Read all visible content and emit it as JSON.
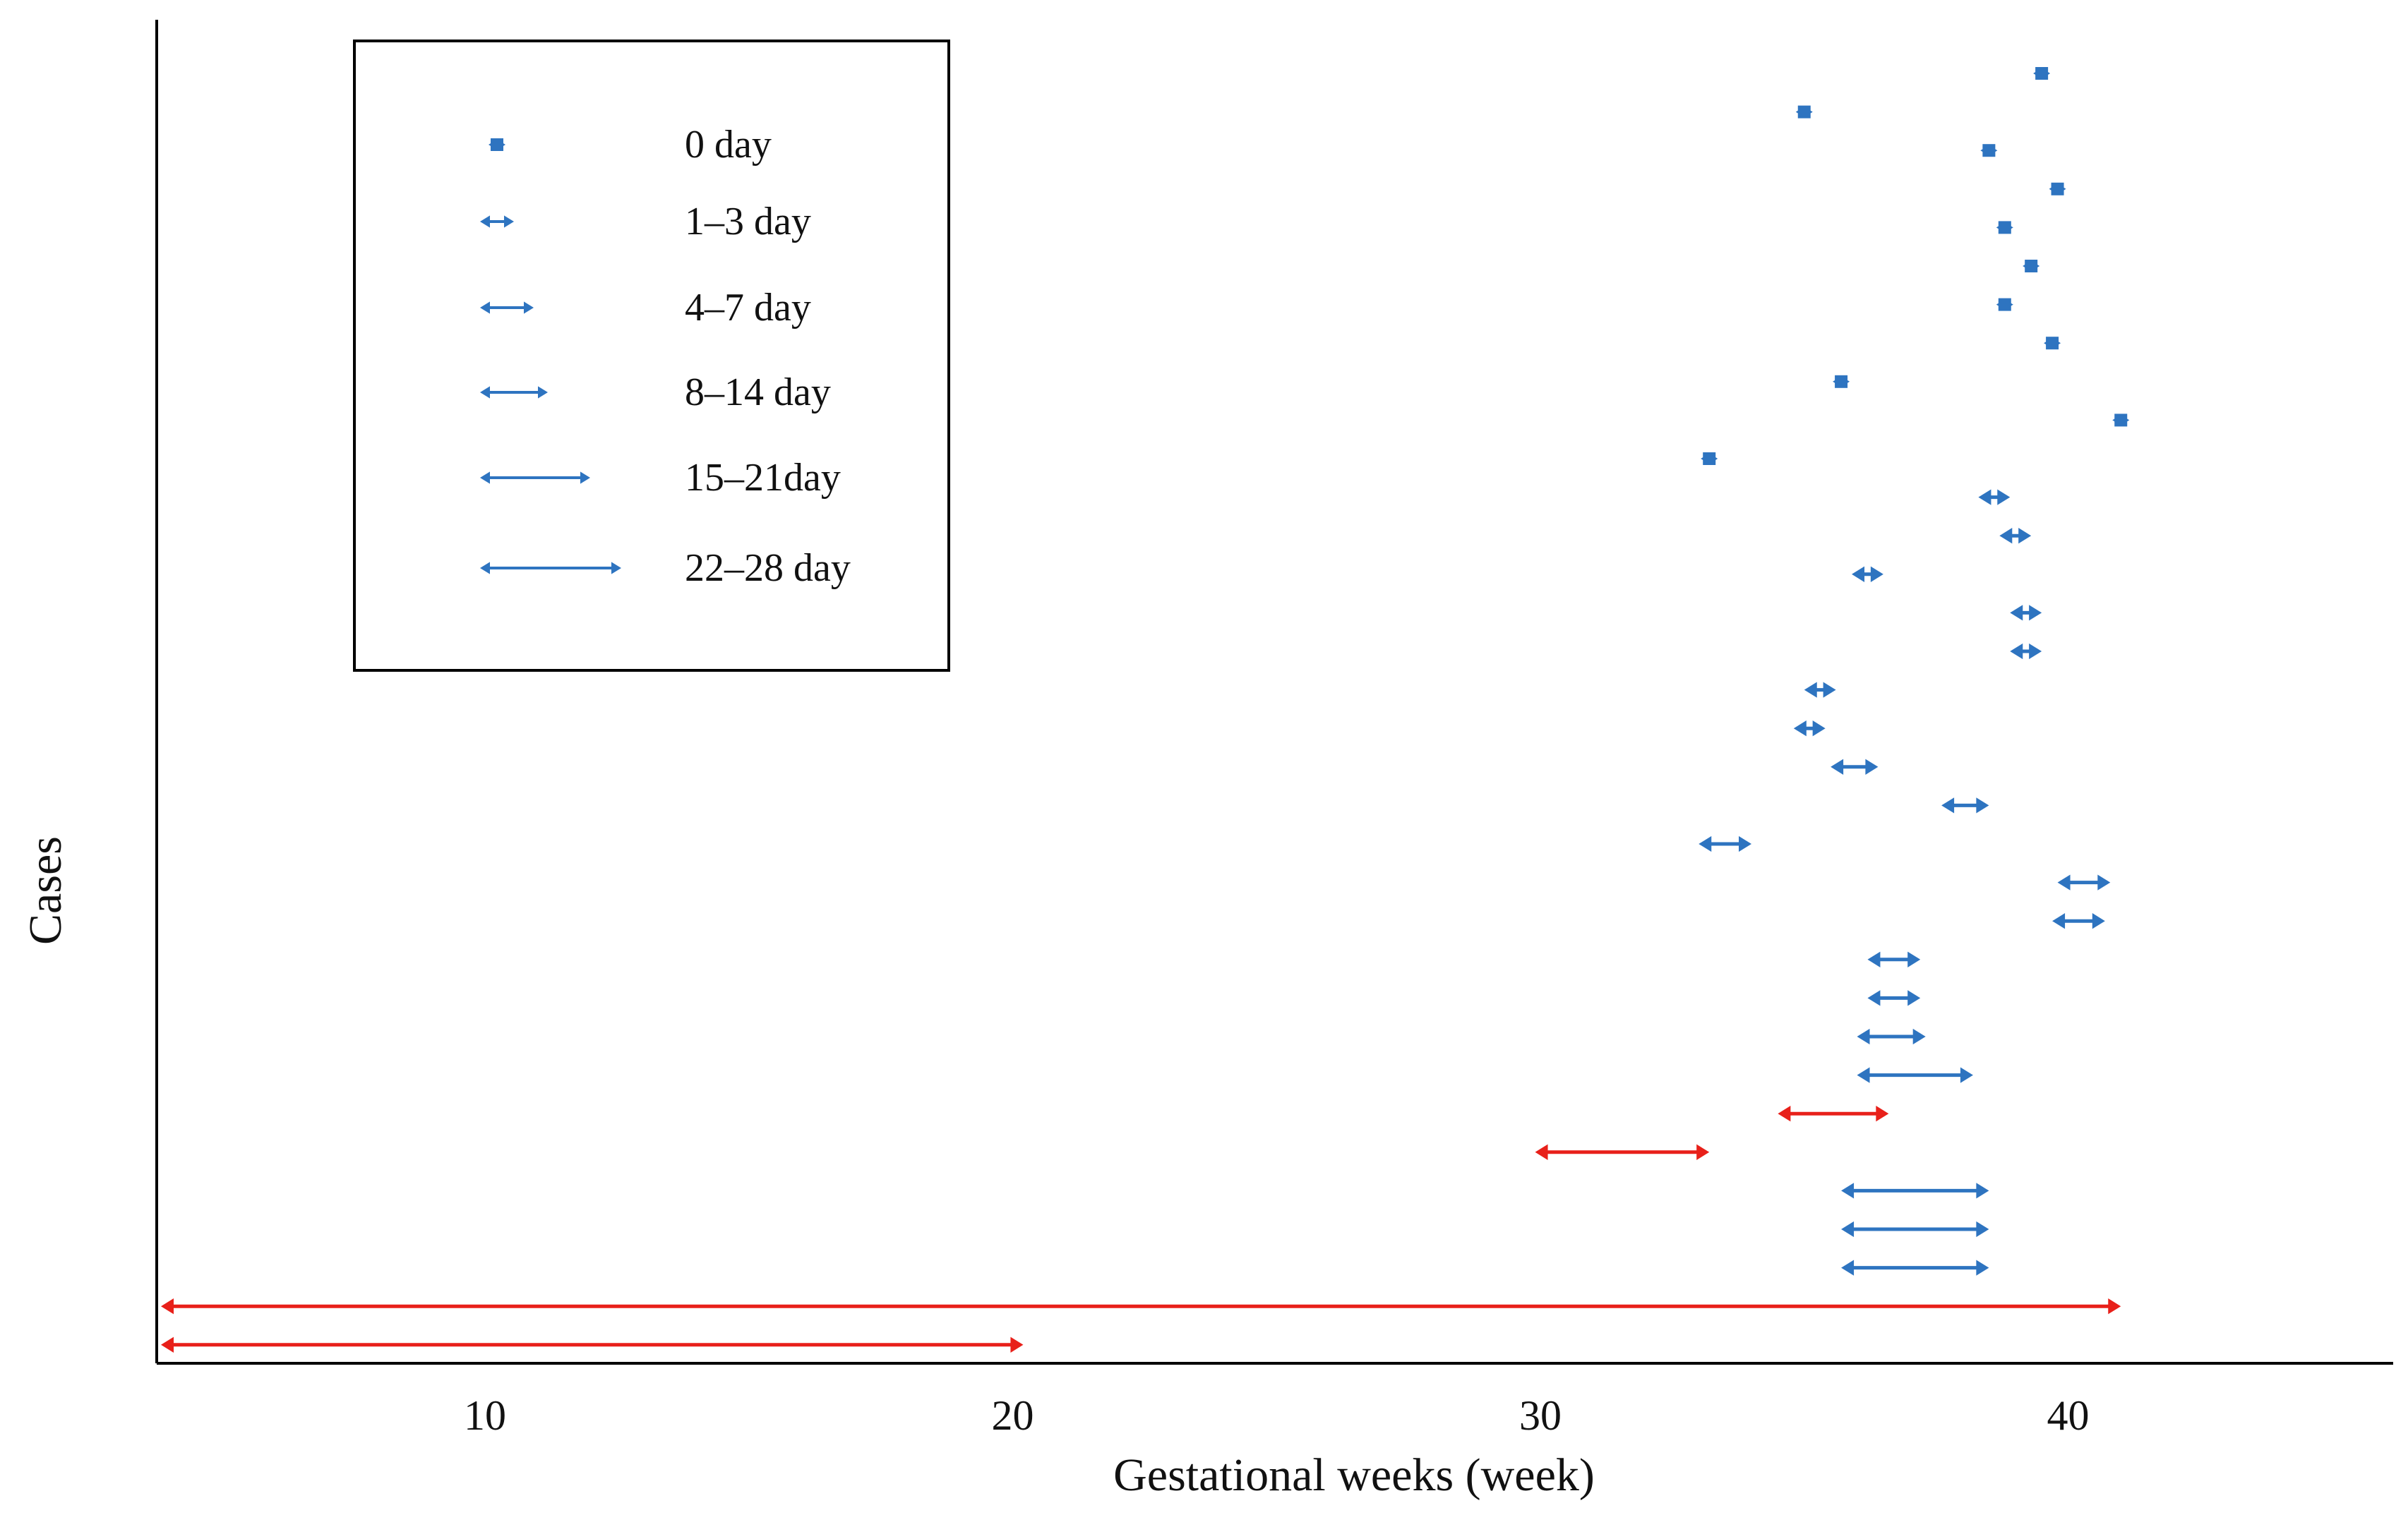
{
  "chart_data": {
    "type": "interval",
    "title": "",
    "xlabel": "Gestational weeks (week)",
    "ylabel": "Cases",
    "xlim": [
      3.5,
      45.5
    ],
    "xticks": [
      10,
      20,
      30,
      40
    ],
    "colors": {
      "blue": "#2e74c0",
      "red": "#e8201a",
      "axis": "#000000"
    },
    "legend": {
      "placement": "top-left",
      "items": [
        {
          "label": "0 day",
          "duration_days": 0
        },
        {
          "label": "1–3 day",
          "duration_days": 3
        },
        {
          "label": "4–7 day",
          "duration_days": 7
        },
        {
          "label": "8–14 day",
          "duration_days": 10
        },
        {
          "label": "15–21day",
          "duration_days": 16
        },
        {
          "label": "22–28 day",
          "duration_days": 22
        }
      ]
    },
    "cases": [
      {
        "row": 1,
        "start": 39.4,
        "end": 39.6,
        "color": "blue"
      },
      {
        "row": 2,
        "start": 34.9,
        "end": 35.1,
        "color": "blue"
      },
      {
        "row": 3,
        "start": 38.4,
        "end": 38.6,
        "color": "blue"
      },
      {
        "row": 4,
        "start": 39.7,
        "end": 39.9,
        "color": "blue"
      },
      {
        "row": 5,
        "start": 38.7,
        "end": 38.9,
        "color": "blue"
      },
      {
        "row": 6,
        "start": 39.2,
        "end": 39.4,
        "color": "blue"
      },
      {
        "row": 7,
        "start": 38.7,
        "end": 38.9,
        "color": "blue"
      },
      {
        "row": 8,
        "start": 39.6,
        "end": 39.8,
        "color": "blue"
      },
      {
        "row": 9,
        "start": 35.6,
        "end": 35.8,
        "color": "blue"
      },
      {
        "row": 10,
        "start": 40.9,
        "end": 41.1,
        "color": "blue"
      },
      {
        "row": 11,
        "start": 33.1,
        "end": 33.3,
        "color": "blue"
      },
      {
        "row": 12,
        "start": 38.3,
        "end": 38.9,
        "color": "blue"
      },
      {
        "row": 13,
        "start": 38.7,
        "end": 39.3,
        "color": "blue"
      },
      {
        "row": 14,
        "start": 35.9,
        "end": 36.5,
        "color": "blue"
      },
      {
        "row": 15,
        "start": 38.9,
        "end": 39.5,
        "color": "blue"
      },
      {
        "row": 16,
        "start": 38.9,
        "end": 39.5,
        "color": "blue"
      },
      {
        "row": 17,
        "start": 35.0,
        "end": 35.6,
        "color": "blue"
      },
      {
        "row": 18,
        "start": 34.8,
        "end": 35.4,
        "color": "blue"
      },
      {
        "row": 19,
        "start": 35.5,
        "end": 36.4,
        "color": "blue"
      },
      {
        "row": 20,
        "start": 37.6,
        "end": 38.5,
        "color": "blue"
      },
      {
        "row": 21,
        "start": 33.0,
        "end": 34.0,
        "color": "blue"
      },
      {
        "row": 22,
        "start": 39.8,
        "end": 40.8,
        "color": "blue"
      },
      {
        "row": 23,
        "start": 39.7,
        "end": 40.7,
        "color": "blue"
      },
      {
        "row": 24,
        "start": 36.2,
        "end": 37.2,
        "color": "blue"
      },
      {
        "row": 25,
        "start": 36.2,
        "end": 37.2,
        "color": "blue"
      },
      {
        "row": 26,
        "start": 36.0,
        "end": 37.3,
        "color": "blue"
      },
      {
        "row": 27,
        "start": 36.0,
        "end": 38.2,
        "color": "blue"
      },
      {
        "row": 28,
        "start": 34.5,
        "end": 36.6,
        "color": "red"
      },
      {
        "row": 29,
        "start": 29.9,
        "end": 33.2,
        "color": "red"
      },
      {
        "row": 30,
        "start": 35.7,
        "end": 38.5,
        "color": "blue"
      },
      {
        "row": 31,
        "start": 35.7,
        "end": 38.5,
        "color": "blue"
      },
      {
        "row": 32,
        "start": 35.7,
        "end": 38.5,
        "color": "blue"
      },
      {
        "row": 33,
        "start": 3.6,
        "end": 41.0,
        "color": "red"
      },
      {
        "row": 34,
        "start": 3.6,
        "end": 20.2,
        "color": "red"
      }
    ]
  }
}
